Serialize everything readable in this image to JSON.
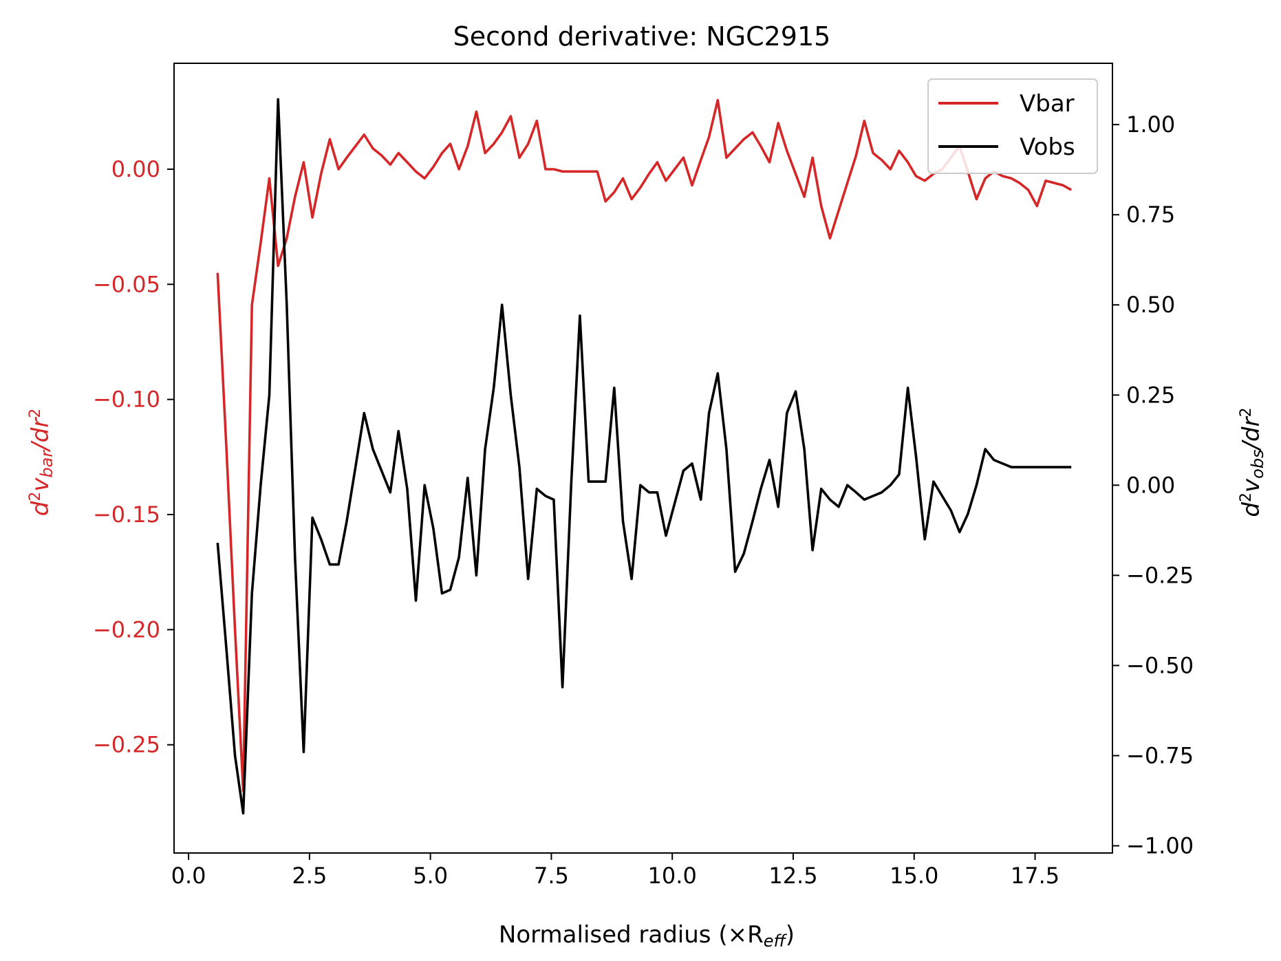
{
  "chart_data": {
    "type": "line",
    "title": "Second derivative: NGC2915",
    "xlabel": "Normalised radius (×R",
    "xlabel_sub": "eff",
    "xlabel_tail": ")",
    "ylabel_left": {
      "d": "d",
      "v": "v",
      "sub": "bar",
      "mid": "/dr"
    },
    "ylabel_right": {
      "d": "d",
      "v": "v",
      "sub": "obs",
      "mid": "/dr"
    },
    "xlim": [
      -0.3,
      19.1
    ],
    "ylim_left": [
      -0.297,
      0.046
    ],
    "ylim_right": [
      -1.02,
      1.17
    ],
    "x_ticks": [
      "0.0",
      "2.5",
      "5.0",
      "7.5",
      "10.0",
      "12.5",
      "15.0",
      "17.5"
    ],
    "x_tick_values": [
      0,
      2.5,
      5,
      7.5,
      10,
      12.5,
      15,
      17.5
    ],
    "y_left_ticks": [
      "0.00",
      "−0.05",
      "−0.10",
      "−0.15",
      "−0.20",
      "−0.25"
    ],
    "y_left_tick_values": [
      0,
      -0.05,
      -0.1,
      -0.15,
      -0.2,
      -0.25
    ],
    "y_right_ticks": [
      "1.00",
      "0.75",
      "0.50",
      "0.25",
      "0.00",
      "−0.25",
      "−0.50",
      "−0.75",
      "−1.00"
    ],
    "y_right_tick_values": [
      1,
      0.75,
      0.5,
      0.25,
      0,
      -0.25,
      -0.5,
      -0.75,
      -1
    ],
    "legend_position": "top-right",
    "colors": {
      "vbar": "#d62728",
      "vobs": "#000000"
    },
    "x": [
      0.6,
      0.78,
      0.96,
      1.13,
      1.31,
      1.49,
      1.67,
      1.85,
      2.03,
      2.2,
      2.38,
      2.56,
      2.74,
      2.92,
      3.1,
      3.27,
      3.45,
      3.63,
      3.81,
      3.99,
      4.17,
      4.34,
      4.52,
      4.7,
      4.88,
      5.06,
      5.24,
      5.41,
      5.59,
      5.77,
      5.95,
      6.13,
      6.31,
      6.48,
      6.66,
      6.84,
      7.02,
      7.2,
      7.38,
      7.55,
      7.73,
      7.91,
      8.09,
      8.27,
      8.45,
      8.62,
      8.8,
      8.98,
      9.16,
      9.34,
      9.52,
      9.69,
      9.87,
      10.05,
      10.23,
      10.41,
      10.59,
      10.76,
      10.94,
      11.12,
      11.3,
      11.48,
      11.66,
      11.83,
      12.01,
      12.19,
      12.37,
      12.55,
      12.73,
      12.9,
      13.08,
      13.26,
      13.44,
      13.62,
      13.8,
      13.97,
      14.15,
      14.33,
      14.51,
      14.69,
      14.87,
      15.04,
      15.22,
      15.4,
      15.58,
      15.76,
      15.94,
      16.11,
      16.29,
      16.47,
      16.65,
      16.83,
      17.01,
      17.18,
      17.36,
      17.54,
      17.72,
      17.9,
      18.08,
      18.25
    ],
    "series": [
      {
        "name": "Vbar",
        "values": [
          -0.045,
          -0.12,
          -0.2,
          -0.27,
          -0.059,
          -0.032,
          -0.004,
          -0.042,
          -0.03,
          -0.012,
          0.003,
          -0.021,
          -0.002,
          0.013,
          0.0,
          0.005,
          0.01,
          0.015,
          0.009,
          0.006,
          0.002,
          0.007,
          0.003,
          -0.001,
          -0.004,
          0.001,
          0.007,
          0.011,
          0.0,
          0.01,
          0.025,
          0.007,
          0.011,
          0.016,
          0.023,
          0.005,
          0.011,
          0.021,
          0.0,
          0.0,
          -0.001,
          -0.001,
          -0.001,
          -0.001,
          -0.001,
          -0.014,
          -0.01,
          -0.004,
          -0.013,
          -0.008,
          -0.002,
          0.003,
          -0.005,
          0.0,
          0.005,
          -0.007,
          0.004,
          0.014,
          0.03,
          0.005,
          0.009,
          0.013,
          0.016,
          0.01,
          0.003,
          0.02,
          0.008,
          -0.002,
          -0.012,
          0.005,
          -0.016,
          -0.03,
          -0.018,
          -0.006,
          0.006,
          0.021,
          0.007,
          0.004,
          0.0,
          0.008,
          0.003,
          -0.003,
          -0.005,
          -0.002,
          0.0,
          0.005,
          0.01,
          -0.001,
          -0.013,
          -0.004,
          -0.001,
          -0.003,
          -0.004,
          -0.006,
          -0.009,
          -0.016,
          -0.005,
          -0.006,
          -0.007,
          -0.009
        ]
      },
      {
        "name": "Vobs",
        "values": [
          -0.16,
          -0.45,
          -0.75,
          -0.91,
          -0.3,
          0.0,
          0.25,
          1.07,
          0.5,
          -0.2,
          -0.74,
          -0.09,
          -0.15,
          -0.22,
          -0.22,
          -0.1,
          0.05,
          0.2,
          0.1,
          0.04,
          -0.02,
          0.15,
          -0.01,
          -0.32,
          0.0,
          -0.12,
          -0.3,
          -0.29,
          -0.2,
          0.02,
          -0.25,
          0.1,
          0.27,
          0.5,
          0.25,
          0.05,
          -0.26,
          -0.01,
          -0.03,
          -0.04,
          -0.56,
          0.0,
          0.47,
          0.01,
          0.01,
          0.01,
          0.27,
          -0.1,
          -0.26,
          0.0,
          -0.02,
          -0.02,
          -0.14,
          -0.05,
          0.04,
          0.06,
          -0.04,
          0.2,
          0.31,
          0.1,
          -0.24,
          -0.19,
          -0.1,
          -0.01,
          0.07,
          -0.06,
          0.2,
          0.26,
          0.1,
          -0.18,
          -0.01,
          -0.04,
          -0.06,
          0.0,
          -0.02,
          -0.04,
          -0.03,
          -0.02,
          0.0,
          0.03,
          0.27,
          0.08,
          -0.15,
          0.01,
          -0.03,
          -0.07,
          -0.13,
          -0.08,
          0.0,
          0.1,
          0.07,
          0.06,
          0.05,
          0.05,
          0.05,
          0.05,
          0.05,
          0.05,
          0.05,
          0.05
        ]
      }
    ]
  }
}
